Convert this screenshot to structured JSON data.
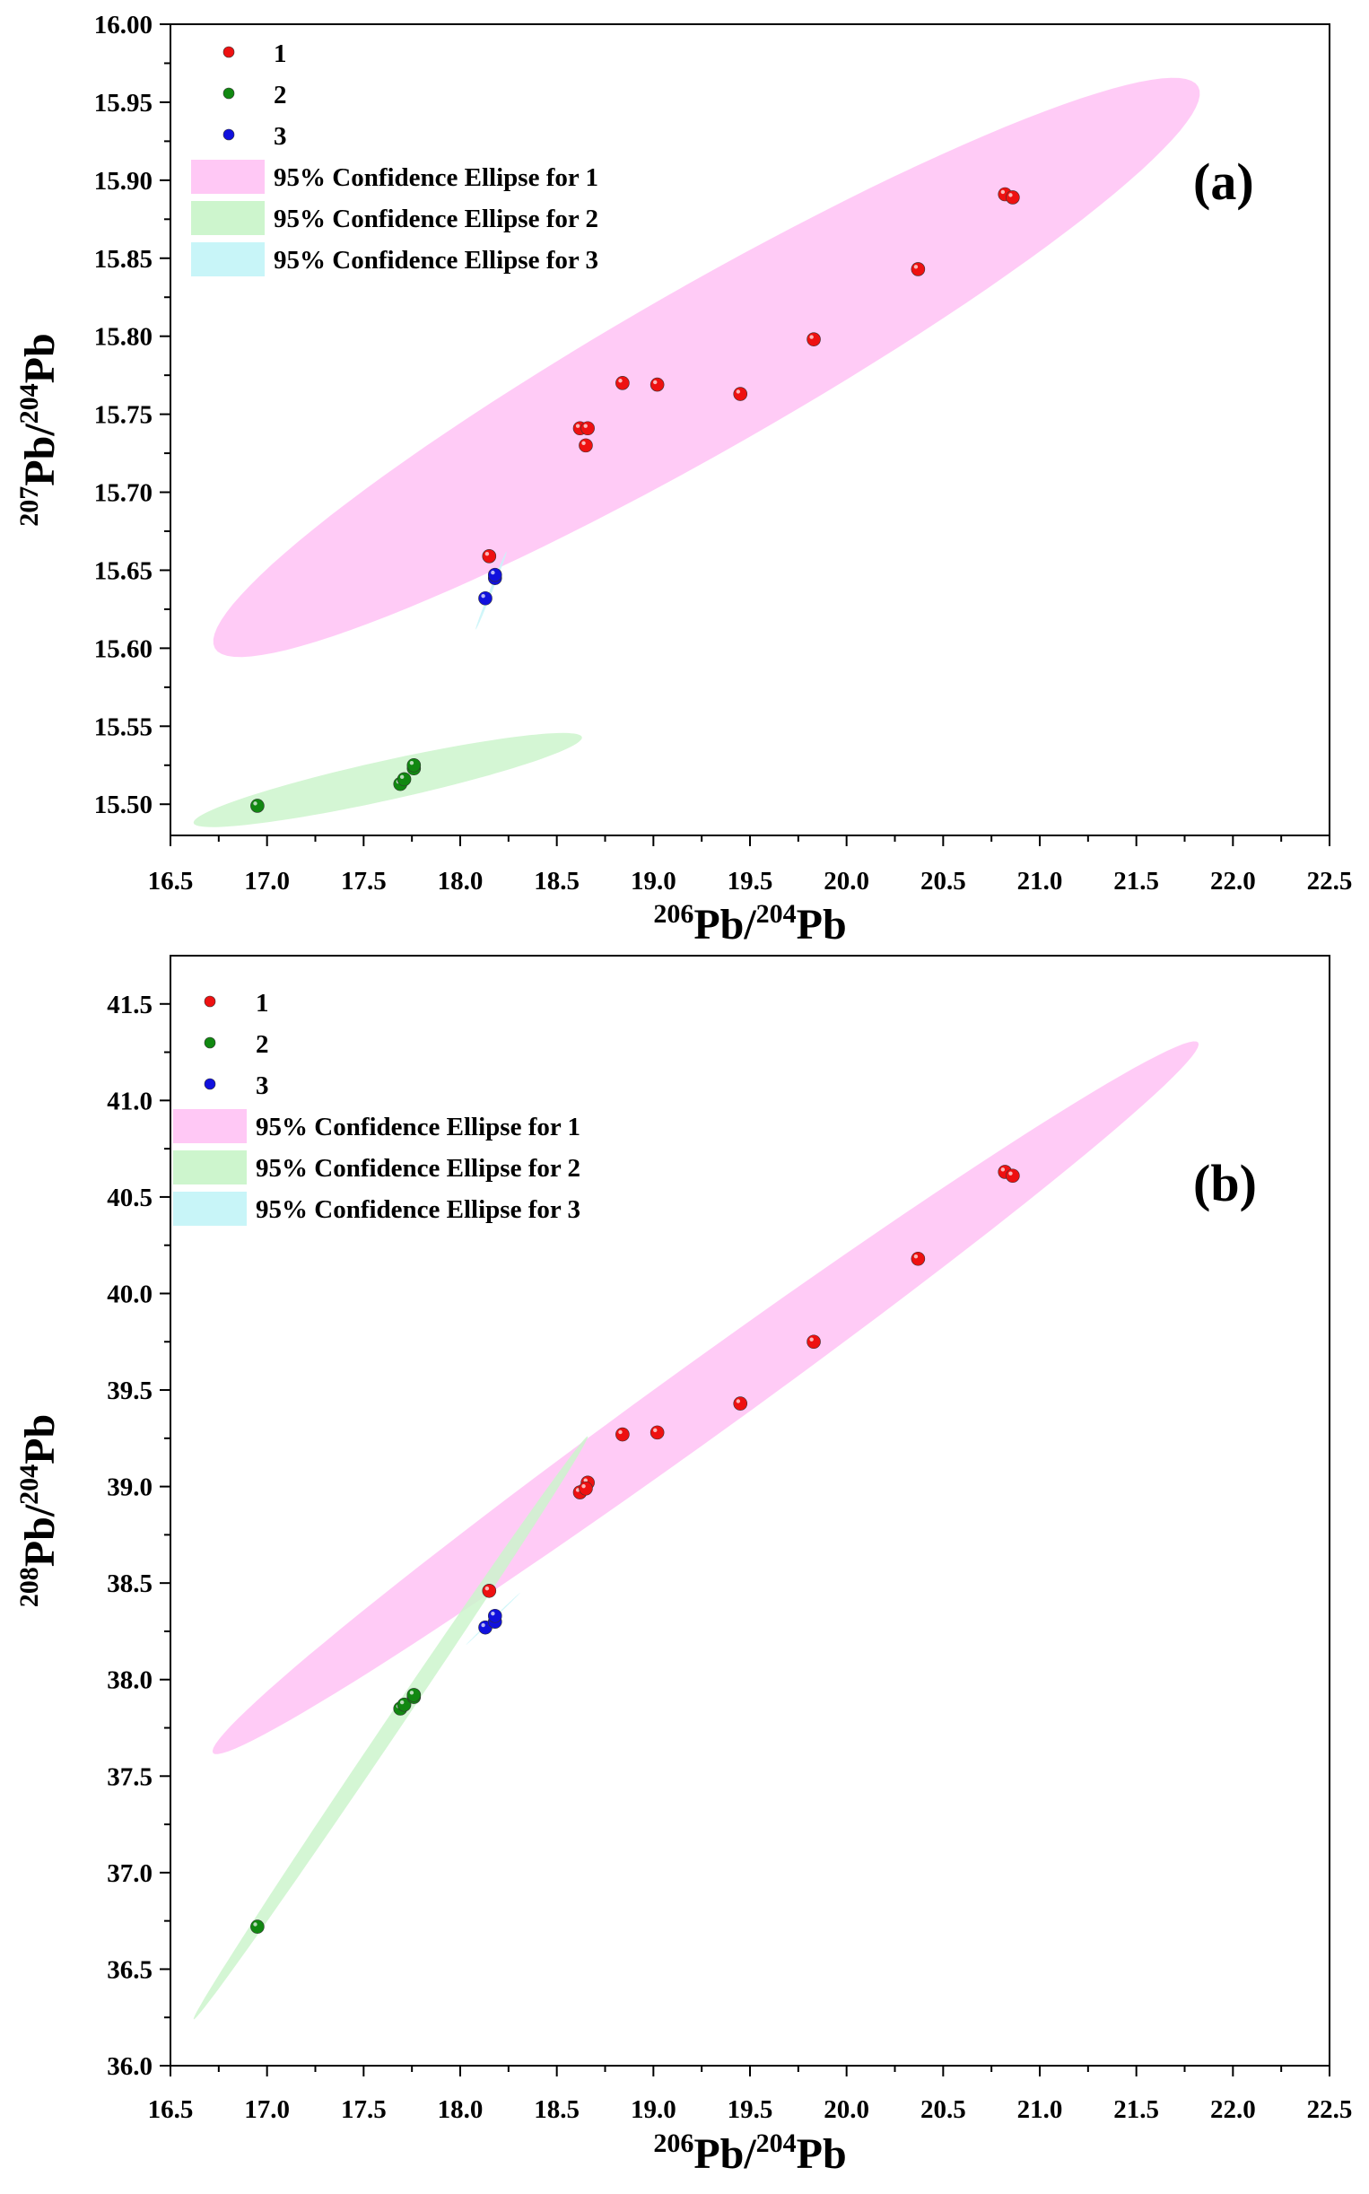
{
  "colors": {
    "series1": "#ee1111",
    "series2": "#118811",
    "series3": "#1111dd",
    "ellipse1": "#ffc8f5",
    "ellipse2": "#cdf5cd",
    "ellipse3": "#c8f5f8"
  },
  "chart_data": [
    {
      "type": "scatter",
      "panel_label": "(a)",
      "xlabel": {
        "sup": "206",
        "base": "Pb/",
        "sup2": "204",
        "base2": "Pb"
      },
      "ylabel": {
        "sup": "207",
        "base": "Pb/",
        "sup2": "204",
        "base2": "Pb"
      },
      "xlim": [
        16.5,
        22.5
      ],
      "ylim": [
        15.48,
        16.0
      ],
      "x_ticks": [
        "16.5",
        "17.0",
        "17.5",
        "18.0",
        "18.5",
        "19.0",
        "19.5",
        "20.0",
        "20.5",
        "21.0",
        "21.5",
        "22.0",
        "22.5"
      ],
      "y_ticks": [
        "15.50",
        "15.55",
        "15.60",
        "15.65",
        "15.70",
        "15.75",
        "15.80",
        "15.85",
        "15.90",
        "15.95",
        "16.00"
      ],
      "legend": [
        "1",
        "2",
        "3",
        "95% Confidence Ellipse for 1",
        "95% Confidence Ellipse for 2",
        "95% Confidence Ellipse for 3"
      ],
      "series": [
        {
          "name": "1",
          "x": [
            18.15,
            18.62,
            18.66,
            18.65,
            18.84,
            19.02,
            19.45,
            19.83,
            20.37,
            20.82,
            20.86
          ],
          "y": [
            15.659,
            15.741,
            15.741,
            15.73,
            15.77,
            15.769,
            15.763,
            15.798,
            15.843,
            15.891,
            15.889
          ]
        },
        {
          "name": "2",
          "x": [
            16.95,
            17.69,
            17.71,
            17.76,
            17.76
          ],
          "y": [
            15.499,
            15.513,
            15.516,
            15.523,
            15.525
          ]
        },
        {
          "name": "3",
          "x": [
            18.13,
            18.18,
            18.18
          ],
          "y": [
            15.632,
            15.645,
            15.647
          ]
        }
      ],
      "ellipses": [
        {
          "name": "95% Confidence Ellipse for 1",
          "x1": 16.73,
          "y1": 15.6,
          "x2": 21.82,
          "y2": 15.96,
          "x3": 19.57,
          "y3": 15.86
        },
        {
          "name": "95% Confidence Ellipse for 2",
          "x1": 16.62,
          "y1": 15.488,
          "x2": 18.63,
          "y2": 15.543,
          "x3": 17.57,
          "y3": 15.527
        },
        {
          "name": "95% Confidence Ellipse for 3",
          "x1": 18.08,
          "y1": 15.612,
          "x2": 18.24,
          "y2": 15.662,
          "x3": 18.165,
          "y3": 15.641
        }
      ]
    },
    {
      "type": "scatter",
      "panel_label": "(b)",
      "xlabel": {
        "sup": "206",
        "base": "Pb/",
        "sup2": "204",
        "base2": "Pb"
      },
      "ylabel": {
        "sup": "208",
        "base": "Pb/",
        "sup2": "204",
        "base2": "Pb"
      },
      "xlim": [
        16.5,
        22.5
      ],
      "ylim": [
        36.0,
        41.75
      ],
      "x_ticks": [
        "16.5",
        "17.0",
        "17.5",
        "18.0",
        "18.5",
        "19.0",
        "19.5",
        "20.0",
        "20.5",
        "21.0",
        "21.5",
        "22.0",
        "22.5"
      ],
      "y_ticks": [
        "36.0",
        "36.5",
        "37.0",
        "37.5",
        "38.0",
        "38.5",
        "39.0",
        "39.5",
        "40.0",
        "40.5",
        "41.0",
        "41.5"
      ],
      "legend": [
        "1",
        "2",
        "3",
        "95% Confidence Ellipse for 1",
        "95% Confidence Ellipse for 2",
        "95% Confidence Ellipse for 3"
      ],
      "series": [
        {
          "name": "1",
          "x": [
            18.15,
            18.62,
            18.66,
            18.65,
            18.84,
            19.02,
            19.45,
            19.83,
            20.37,
            20.82,
            20.86
          ],
          "y": [
            38.46,
            38.97,
            39.02,
            38.99,
            39.27,
            39.28,
            39.43,
            39.75,
            40.18,
            40.63,
            40.61
          ]
        },
        {
          "name": "2",
          "x": [
            16.95,
            17.69,
            17.71,
            17.76,
            17.76
          ],
          "y": [
            36.72,
            37.85,
            37.87,
            37.91,
            37.92
          ]
        },
        {
          "name": "3",
          "x": [
            18.13,
            18.18,
            18.18
          ],
          "y": [
            38.27,
            38.3,
            38.33
          ]
        }
      ],
      "ellipses": [
        {
          "name": "95% Confidence Ellipse for 1",
          "x1": 16.72,
          "y1": 37.62,
          "x2": 21.82,
          "y2": 41.3,
          "x3": 19.7,
          "y3": 40.0
        },
        {
          "name": "95% Confidence Ellipse for 2",
          "x1": 16.62,
          "y1": 36.24,
          "x2": 18.66,
          "y2": 39.26,
          "x3": 17.625,
          "y3": 37.8
        },
        {
          "name": "95% Confidence Ellipse for 3",
          "x1": 18.03,
          "y1": 38.18,
          "x2": 18.31,
          "y2": 38.45,
          "x3": 18.16,
          "y3": 38.31
        }
      ]
    }
  ]
}
